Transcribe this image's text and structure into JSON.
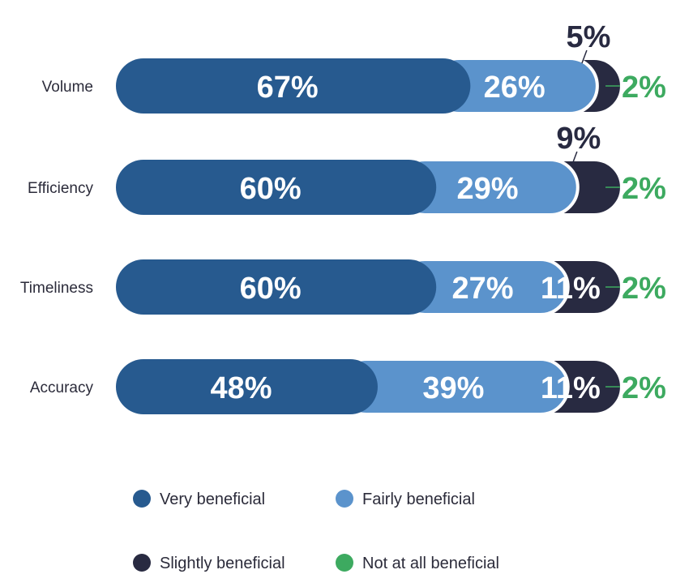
{
  "colors": {
    "very": "#275a8f",
    "fairly": "#5b93cc",
    "slightly": "#282a41",
    "not": "#3daa60",
    "border": "#ffffff"
  },
  "chart_data": {
    "type": "bar",
    "orientation": "horizontal",
    "stacked": true,
    "categories": [
      "Volume",
      "Efficiency",
      "Timeliness",
      "Accuracy"
    ],
    "series": [
      {
        "name": "Very beneficial",
        "values": [
          67,
          60,
          60,
          48
        ],
        "labels": [
          "67%",
          "60%",
          "60%",
          "48%"
        ]
      },
      {
        "name": "Fairly beneficial",
        "values": [
          26,
          29,
          27,
          39
        ],
        "labels": [
          "26%",
          "29%",
          "27%",
          "39%"
        ]
      },
      {
        "name": "Slightly beneficial",
        "values": [
          5,
          9,
          11,
          11
        ],
        "labels": [
          "5%",
          "9%",
          "11%",
          "11%"
        ]
      },
      {
        "name": "Not at all beneficial",
        "values": [
          2,
          2,
          2,
          2
        ],
        "labels": [
          "2%",
          "2%",
          "2%",
          "2%"
        ]
      }
    ],
    "legend": [
      "Very beneficial",
      "Fairly beneficial",
      "Slightly beneficial",
      "Not at all beneficial"
    ],
    "legend_position": "bottom",
    "unit": "%",
    "grid": false
  }
}
